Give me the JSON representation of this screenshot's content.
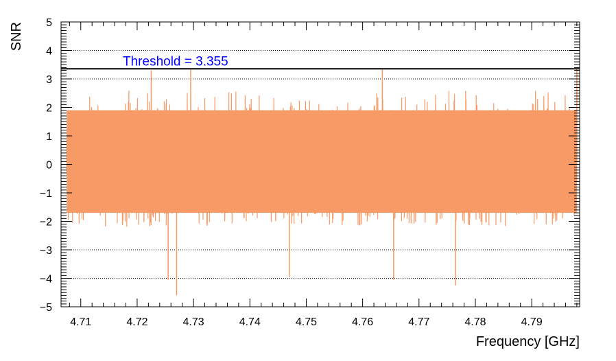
{
  "chart_data": {
    "type": "line",
    "title": "",
    "xlabel": "Frequency [GHz]",
    "ylabel": "SNR",
    "xlim": [
      4.7065,
      4.7985
    ],
    "ylim": [
      -5,
      5
    ],
    "x_ticks": [
      "4.71",
      "4.72",
      "4.73",
      "4.74",
      "4.75",
      "4.76",
      "4.77",
      "4.78",
      "4.79"
    ],
    "y_ticks": [
      "5",
      "4",
      "3",
      "2",
      "1",
      "0",
      "−1",
      "−2",
      "−3",
      "−4",
      "−5"
    ],
    "gridlines_y": [
      4,
      3,
      -3,
      -4
    ],
    "series": [
      {
        "color": "#F79A66",
        "x_range": [
          4.7075,
          4.798
        ],
        "typical_envelope": [
          -2.2,
          2.6
        ],
        "spikes": [
          {
            "x": 4.7225,
            "y": 3.3
          },
          {
            "x": 4.7255,
            "y": -4.05
          },
          {
            "x": 4.727,
            "y": -4.6
          },
          {
            "x": 4.7295,
            "y": 3.35
          },
          {
            "x": 4.747,
            "y": -3.95
          },
          {
            "x": 4.7635,
            "y": 3.35
          },
          {
            "x": 4.7655,
            "y": -4.05
          },
          {
            "x": 4.7765,
            "y": -4.25
          },
          {
            "x": 4.798,
            "y": 3.35
          }
        ]
      }
    ],
    "threshold": {
      "value": 3.355,
      "label": "Threshold = 3.355",
      "line_color": "#000000",
      "label_color": "#0000FF"
    }
  }
}
